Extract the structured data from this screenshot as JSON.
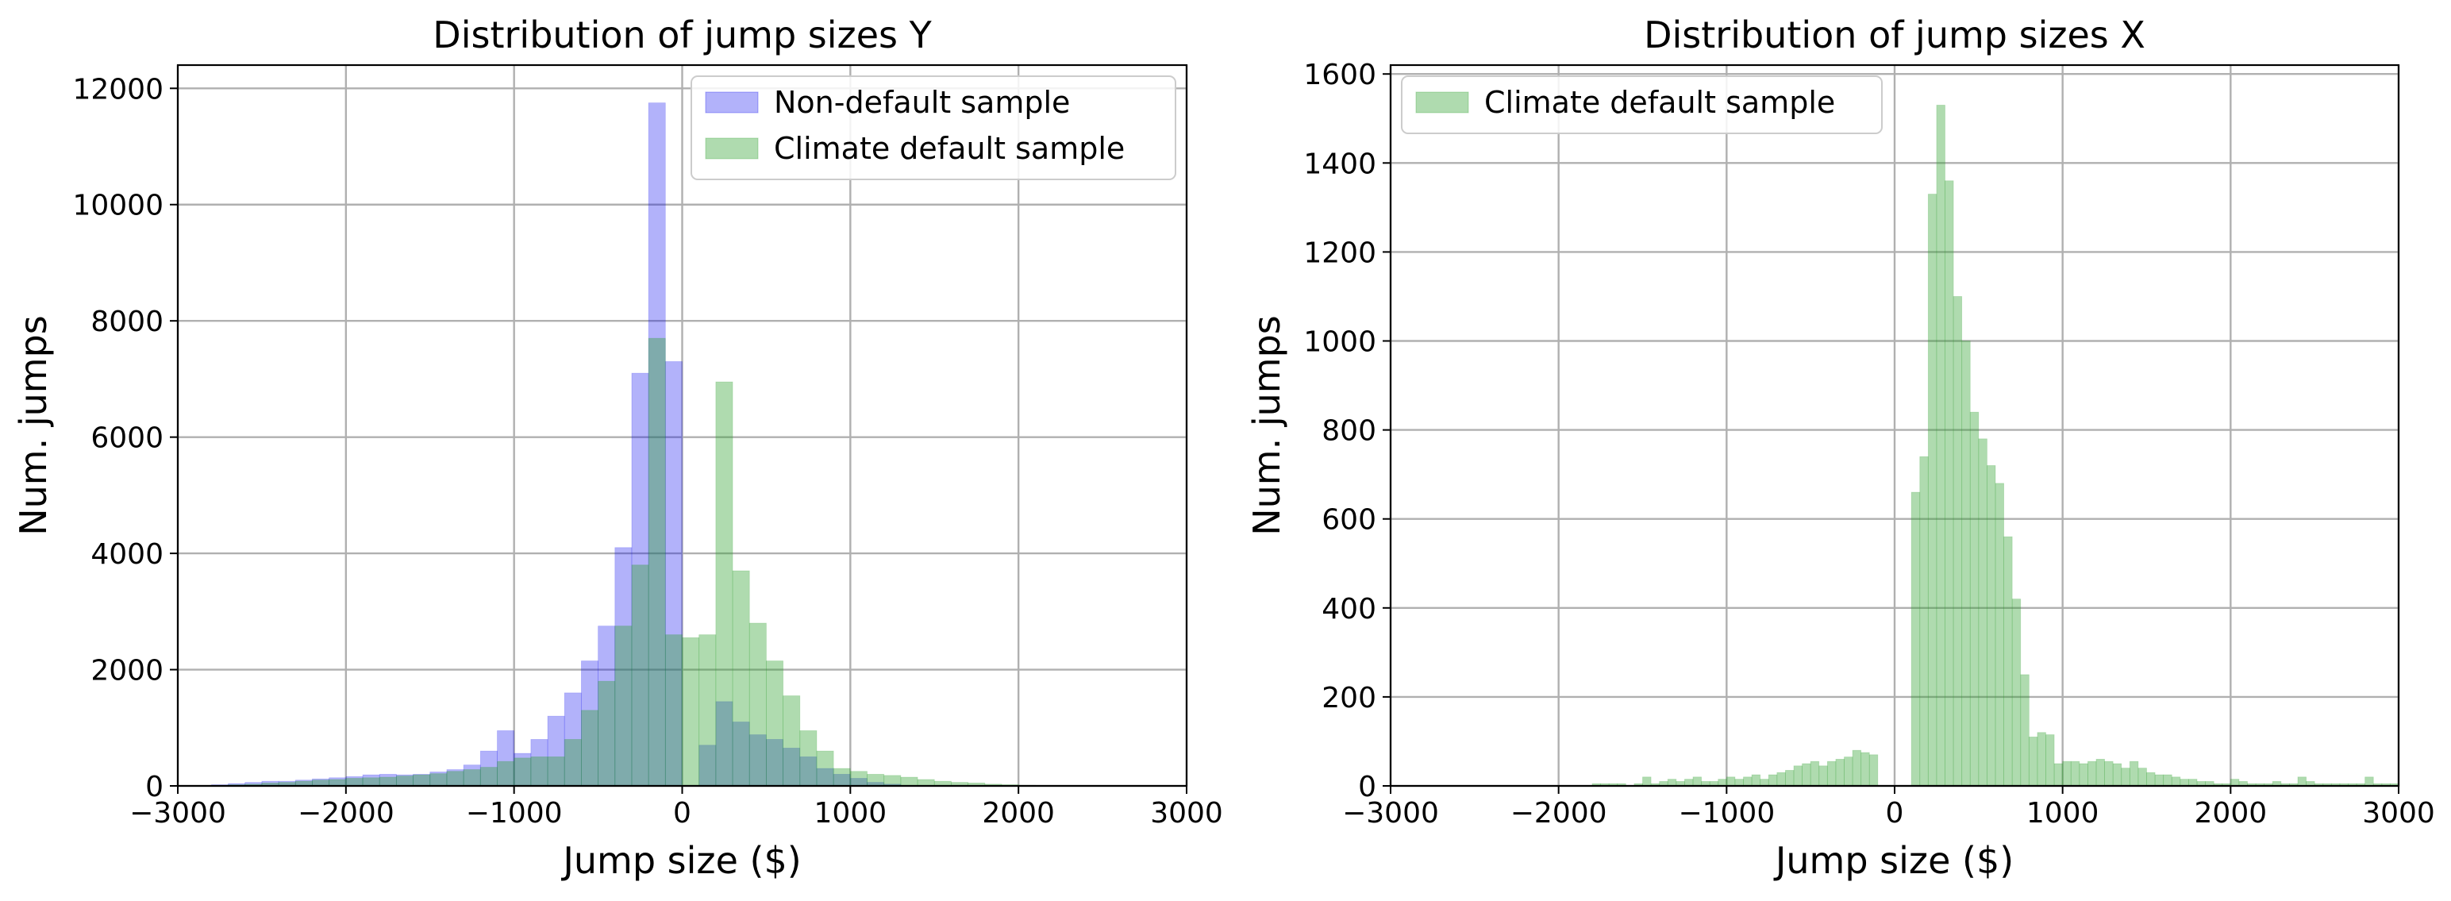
{
  "chart_data": [
    {
      "type": "bar",
      "title": "Distribution of jump sizes Y",
      "xlabel": "Jump size ($)",
      "ylabel": "Num. jumps",
      "xlim": [
        -3000,
        3000
      ],
      "ylim": [
        0,
        12400
      ],
      "xticks": [
        -3000,
        -2000,
        -1000,
        0,
        1000,
        2000,
        3000
      ],
      "xtick_labels": [
        "−3000",
        "−2000",
        "−1000",
        "0",
        "1000",
        "2000",
        "3000"
      ],
      "yticks": [
        0,
        2000,
        4000,
        6000,
        8000,
        10000,
        12000
      ],
      "ytick_labels": [
        "0",
        "2000",
        "4000",
        "6000",
        "8000",
        "10000",
        "12000"
      ],
      "grid": true,
      "legend": "upper-right",
      "bin_width": 100,
      "series": [
        {
          "name": "Non-default sample",
          "color": "#0000ee",
          "opacity": 0.3,
          "x": [
            -2800,
            -2700,
            -2600,
            -2500,
            -2400,
            -2300,
            -2200,
            -2100,
            -2000,
            -1900,
            -1800,
            -1700,
            -1600,
            -1500,
            -1400,
            -1300,
            -1200,
            -1100,
            -1000,
            -900,
            -800,
            -700,
            -600,
            -500,
            -400,
            -300,
            -200,
            -100,
            0,
            100,
            200,
            300,
            400,
            500,
            600,
            700,
            800,
            900,
            1000,
            1100,
            1200
          ],
          "values": [
            20,
            40,
            60,
            80,
            80,
            100,
            120,
            140,
            160,
            190,
            200,
            190,
            200,
            240,
            280,
            360,
            600,
            950,
            560,
            800,
            1200,
            1600,
            2150,
            2750,
            4100,
            7100,
            11750,
            7300,
            0,
            700,
            1450,
            1100,
            880,
            800,
            650,
            500,
            300,
            200,
            130,
            60,
            30
          ]
        },
        {
          "name": "Climate default sample",
          "color": "#2ca02c",
          "opacity": 0.38,
          "x": [
            -2800,
            -2700,
            -2600,
            -2500,
            -2400,
            -2300,
            -2200,
            -2100,
            -2000,
            -1900,
            -1800,
            -1700,
            -1600,
            -1500,
            -1400,
            -1300,
            -1200,
            -1100,
            -1000,
            -900,
            -800,
            -700,
            -600,
            -500,
            -400,
            -300,
            -200,
            -100,
            0,
            100,
            200,
            300,
            400,
            500,
            600,
            700,
            800,
            900,
            1000,
            1100,
            1200,
            1300,
            1400,
            1500,
            1600,
            1700,
            1800,
            1900,
            2000
          ],
          "values": [
            10,
            20,
            30,
            50,
            60,
            80,
            100,
            110,
            130,
            140,
            150,
            170,
            190,
            210,
            250,
            280,
            320,
            420,
            480,
            500,
            500,
            800,
            1300,
            1800,
            2750,
            3800,
            7700,
            2600,
            2550,
            2600,
            6950,
            3700,
            2800,
            2150,
            1550,
            950,
            600,
            300,
            250,
            200,
            180,
            150,
            110,
            80,
            60,
            50,
            30,
            20,
            10
          ]
        }
      ]
    },
    {
      "type": "bar",
      "title": "Distribution of jump sizes X",
      "xlabel": "Jump size ($)",
      "ylabel": "Num. jumps",
      "xlim": [
        -3000,
        3000
      ],
      "ylim": [
        0,
        1620
      ],
      "xticks": [
        -3000,
        -2000,
        -1000,
        0,
        1000,
        2000,
        3000
      ],
      "xtick_labels": [
        "−3000",
        "−2000",
        "−1000",
        "0",
        "1000",
        "2000",
        "3000"
      ],
      "yticks": [
        0,
        200,
        400,
        600,
        800,
        1000,
        1200,
        1400,
        1600
      ],
      "ytick_labels": [
        "0",
        "200",
        "400",
        "600",
        "800",
        "1000",
        "1200",
        "1400",
        "1600"
      ],
      "grid": true,
      "legend": "upper-left",
      "bin_width": 50,
      "series": [
        {
          "name": "Climate default sample",
          "color": "#2ca02c",
          "opacity": 0.38,
          "x": [
            -1800,
            -1750,
            -1700,
            -1650,
            -1600,
            -1550,
            -1500,
            -1450,
            -1400,
            -1350,
            -1300,
            -1250,
            -1200,
            -1150,
            -1100,
            -1050,
            -1000,
            -950,
            -900,
            -850,
            -800,
            -750,
            -700,
            -650,
            -600,
            -550,
            -500,
            -450,
            -400,
            -350,
            -300,
            -250,
            -200,
            -150,
            100,
            150,
            200,
            250,
            300,
            350,
            400,
            450,
            500,
            550,
            600,
            650,
            700,
            750,
            800,
            850,
            900,
            950,
            1000,
            1050,
            1100,
            1150,
            1200,
            1250,
            1300,
            1350,
            1400,
            1450,
            1500,
            1550,
            1600,
            1650,
            1700,
            1750,
            1800,
            1850,
            1900,
            1950,
            2000,
            2050,
            2100,
            2150,
            2200,
            2250,
            2300,
            2350,
            2400,
            2450,
            2500,
            2550,
            2600,
            2650,
            2700,
            2750,
            2800,
            2850,
            2900,
            2950
          ],
          "values": [
            5,
            5,
            5,
            5,
            0,
            5,
            20,
            5,
            10,
            15,
            10,
            15,
            20,
            10,
            10,
            15,
            20,
            15,
            20,
            25,
            15,
            25,
            30,
            35,
            45,
            50,
            55,
            45,
            55,
            60,
            65,
            80,
            75,
            70,
            660,
            740,
            1330,
            1530,
            1360,
            1100,
            1000,
            840,
            780,
            720,
            680,
            560,
            420,
            250,
            110,
            120,
            115,
            50,
            55,
            55,
            50,
            55,
            60,
            55,
            50,
            40,
            55,
            40,
            30,
            25,
            25,
            20,
            15,
            15,
            10,
            10,
            5,
            5,
            15,
            10,
            5,
            5,
            5,
            10,
            5,
            5,
            20,
            10,
            5,
            5,
            5,
            5,
            5,
            5,
            20,
            5,
            5,
            5
          ]
        }
      ]
    }
  ]
}
